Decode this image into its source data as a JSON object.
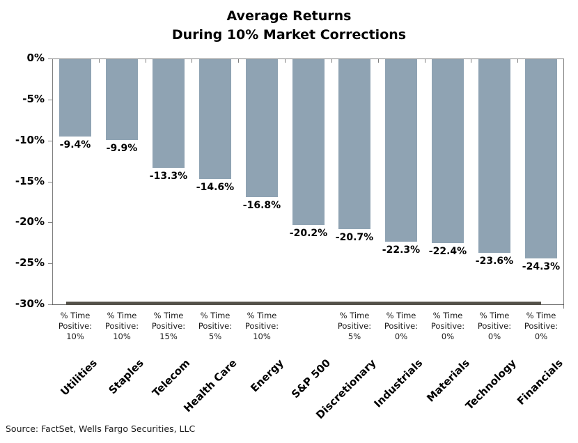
{
  "title": {
    "line1": "Average Returns",
    "line2": "During 10% Market Corrections"
  },
  "source": "Source: FactSet, Wells Fargo Securities, LLC",
  "chart_data": {
    "type": "bar",
    "title": "Average Returns During 10% Market Corrections",
    "categories": [
      "Utilities",
      "Staples",
      "Telecom",
      "Health Care",
      "Energy",
      "S&P 500",
      "Discretionary",
      "Industrials",
      "Materials",
      "Technology",
      "Financials"
    ],
    "values": [
      -9.4,
      -9.9,
      -13.3,
      -14.6,
      -16.8,
      -20.2,
      -20.7,
      -22.3,
      -22.4,
      -23.6,
      -24.3
    ],
    "value_labels": [
      "-9.4%",
      "-9.9%",
      "-13.3%",
      "-14.6%",
      "-16.8%",
      "-20.2%",
      "-20.7%",
      "-22.3%",
      "-22.4%",
      "-23.6%",
      "-24.3%"
    ],
    "time_positive_line1": "% Time",
    "time_positive_line2": "Positive:",
    "time_positive": [
      "10%",
      "10%",
      "15%",
      "5%",
      "10%",
      null,
      "5%",
      "0%",
      "0%",
      "0%",
      "0%"
    ],
    "xlabel": "",
    "ylabel": "",
    "ylim": [
      -30,
      0
    ],
    "ytick_labels": [
      "0%",
      "-5%",
      "-10%",
      "-15%",
      "-20%",
      "-25%",
      "-30%"
    ],
    "ytick_values": [
      0,
      -5,
      -10,
      -15,
      -20,
      -25,
      -30
    ],
    "grid": false,
    "legend": "none",
    "bar_color": "#8FA3B3",
    "axis_color": "#808080",
    "baseline_color": "#55524A",
    "text_color": "#000000"
  }
}
